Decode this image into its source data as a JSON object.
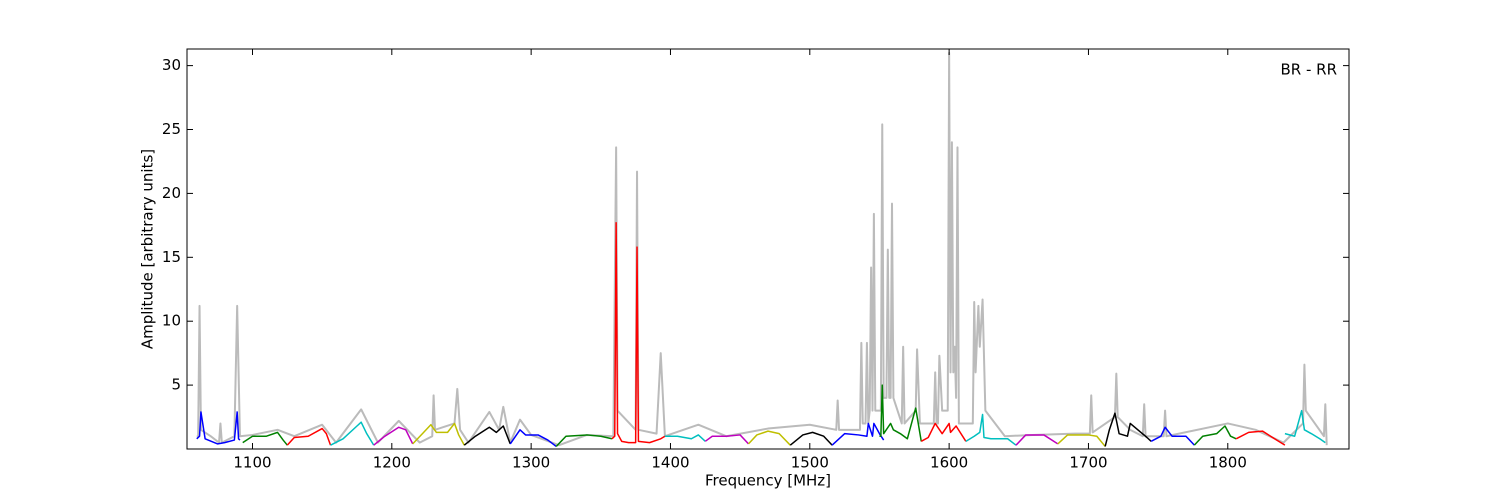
{
  "chart_data": {
    "type": "line",
    "xlabel": "Frequency [MHz]",
    "ylabel": "Amplitude [arbitrary units]",
    "annotation": "BR - RR",
    "xlim": [
      1053,
      1887
    ],
    "ylim": [
      0,
      31.3
    ],
    "xticks": [
      1100,
      1200,
      1300,
      1400,
      1500,
      1600,
      1700,
      1800
    ],
    "yticks": [
      5,
      10,
      15,
      20,
      25,
      30
    ],
    "series": [
      {
        "color": "#bbbbbb",
        "x": [
          1060,
          1061,
          1062,
          1063,
          1070,
          1076,
          1077,
          1078,
          1087,
          1089,
          1091,
          1100,
          1118,
          1130,
          1150,
          1160,
          1178,
          1190,
          1205,
          1220,
          1229,
          1230,
          1231,
          1245,
          1247,
          1249,
          1255,
          1270,
          1277,
          1280,
          1285,
          1292,
          1300,
          1320,
          1340,
          1359,
          1361,
          1362,
          1375,
          1376,
          1377,
          1390,
          1393,
          1396,
          1420,
          1440,
          1470,
          1500,
          1519,
          1520,
          1521,
          1536,
          1537,
          1538,
          1540,
          1541,
          1542,
          1543,
          1544,
          1545,
          1546,
          1547,
          1551,
          1552,
          1553,
          1555,
          1556,
          1557,
          1558,
          1559,
          1560,
          1566,
          1567,
          1568,
          1576,
          1577,
          1579,
          1589,
          1590,
          1591,
          1592,
          1593,
          1595,
          1599,
          1600,
          1601,
          1602,
          1603,
          1604,
          1605,
          1606,
          1607,
          1617,
          1618,
          1619,
          1621,
          1622,
          1624,
          1626,
          1640,
          1660,
          1690,
          1701,
          1702,
          1703,
          1719,
          1720,
          1721,
          1730,
          1739,
          1740,
          1741,
          1754,
          1755,
          1756,
          1800,
          1820,
          1840,
          1854,
          1855,
          1856,
          1869,
          1870,
          1871
        ],
        "values": [
          1,
          1,
          11.2,
          1.5,
          1,
          0.5,
          2,
          0.5,
          1,
          11.2,
          1,
          1.1,
          1.5,
          1,
          1.9,
          0.5,
          3.1,
          0.5,
          2.2,
          0.5,
          1,
          4.2,
          1.5,
          2,
          4.7,
          1.5,
          0.5,
          2.9,
          1.5,
          3.3,
          0.5,
          2.3,
          1.1,
          0.3,
          1.1,
          1,
          23.6,
          3,
          1.5,
          21.7,
          1.5,
          1.2,
          7.5,
          1,
          1.9,
          1,
          1.6,
          1.9,
          1.5,
          3.8,
          1.5,
          1.5,
          8.3,
          2,
          2,
          8.3,
          2,
          3,
          14.2,
          3,
          18.4,
          3,
          3,
          25.4,
          4,
          4,
          15.6,
          4,
          4,
          19.2,
          4,
          2,
          8,
          2,
          3,
          7.8,
          2,
          2,
          6,
          2,
          2,
          7.3,
          3,
          3,
          31,
          6,
          24,
          6,
          8,
          4,
          23.6,
          2,
          2,
          11.5,
          6,
          11.2,
          8,
          11.7,
          3,
          1,
          1.1,
          1.2,
          1.2,
          4.2,
          1.3,
          2.5,
          5.9,
          2.5,
          1.5,
          1,
          3.5,
          1,
          1,
          3,
          1,
          2,
          1.5,
          0.5,
          2,
          6.6,
          3,
          1,
          3.5,
          0.3
        ]
      },
      {
        "color": "#0000ff",
        "x": [
          1060,
          1062,
          1063,
          1066,
          1075,
          1080,
          1087,
          1089,
          1090,
          1091
        ],
        "values": [
          0.8,
          1,
          2.9,
          0.8,
          0.4,
          0.5,
          0.7,
          2.9,
          0.8,
          0.7
        ]
      },
      {
        "color": "#008000",
        "x": [
          1093,
          1100,
          1110,
          1118,
          1122,
          1125
        ],
        "values": [
          0.5,
          1,
          1,
          1.3,
          0.7,
          0.3
        ]
      },
      {
        "color": "#ff0000",
        "x": [
          1125,
          1130,
          1140,
          1150,
          1153,
          1156
        ],
        "values": [
          0.3,
          0.9,
          1,
          1.6,
          1.2,
          0.3
        ]
      },
      {
        "color": "#00bfbf",
        "x": [
          1156,
          1165,
          1175,
          1178,
          1182,
          1187
        ],
        "values": [
          0.3,
          0.8,
          1.8,
          2.1,
          1.2,
          0.3
        ]
      },
      {
        "color": "#bf00bf",
        "x": [
          1187,
          1195,
          1205,
          1210,
          1215
        ],
        "values": [
          0.3,
          1,
          1.7,
          1.5,
          0.4
        ]
      },
      {
        "color": "#bfbf00",
        "x": [
          1215,
          1222,
          1228,
          1232,
          1240,
          1245,
          1248,
          1252
        ],
        "values": [
          0.4,
          1.2,
          1.9,
          1.3,
          1.3,
          2,
          1.1,
          0.3
        ]
      },
      {
        "color": "#000000",
        "x": [
          1252,
          1260,
          1270,
          1275,
          1280,
          1285
        ],
        "values": [
          0.3,
          1,
          1.7,
          1.3,
          1.8,
          0.4
        ]
      },
      {
        "color": "#0000ff",
        "x": [
          1285,
          1292,
          1296,
          1305,
          1312,
          1318
        ],
        "values": [
          0.4,
          1.5,
          1.1,
          1.1,
          0.7,
          0.2
        ]
      },
      {
        "color": "#008000",
        "x": [
          1318,
          1325,
          1340,
          1350,
          1358
        ],
        "values": [
          0.2,
          1,
          1.1,
          1,
          0.8
        ]
      },
      {
        "color": "#ff0000",
        "x": [
          1358,
          1360,
          1361,
          1362,
          1365,
          1370,
          1375,
          1376,
          1377,
          1385,
          1393,
          1396
        ],
        "values": [
          0.8,
          1,
          17.7,
          1.2,
          0.6,
          0.5,
          0.5,
          15.8,
          0.6,
          0.5,
          0.8,
          1
        ]
      },
      {
        "color": "#00bfbf",
        "x": [
          1396,
          1405,
          1415,
          1420,
          1425
        ],
        "values": [
          1,
          1,
          0.8,
          1.1,
          0.6
        ]
      },
      {
        "color": "#bf00bf",
        "x": [
          1425,
          1430,
          1440,
          1450,
          1456
        ],
        "values": [
          0.6,
          1,
          1,
          1.1,
          0.4
        ]
      },
      {
        "color": "#bfbf00",
        "x": [
          1456,
          1462,
          1470,
          1478,
          1486
        ],
        "values": [
          0.4,
          1.1,
          1.4,
          1.2,
          0.3
        ]
      },
      {
        "color": "#000000",
        "x": [
          1486,
          1495,
          1502,
          1510,
          1516
        ],
        "values": [
          0.3,
          1.1,
          1.3,
          1,
          0.3
        ]
      },
      {
        "color": "#0000ff",
        "x": [
          1516,
          1525,
          1535,
          1541,
          1542,
          1545,
          1546,
          1550,
          1553
        ],
        "values": [
          0.3,
          1.2,
          1.1,
          1,
          2,
          1,
          2,
          1.2,
          0.7
        ]
      },
      {
        "color": "#008000",
        "x": [
          1550,
          1551,
          1552,
          1553,
          1558,
          1560,
          1565,
          1570,
          1576,
          1580
        ],
        "values": [
          1,
          1,
          5,
          1.2,
          2,
          1.5,
          1.2,
          0.8,
          3.2,
          0.6
        ]
      },
      {
        "color": "#ff0000",
        "x": [
          1580,
          1585,
          1590,
          1595,
          1600,
          1601,
          1605,
          1612
        ],
        "values": [
          0.6,
          0.9,
          2,
          1.2,
          2,
          1.3,
          1.8,
          0.6
        ]
      },
      {
        "color": "#00bfbf",
        "x": [
          1612,
          1618,
          1622,
          1624,
          1625,
          1630,
          1642,
          1648
        ],
        "values": [
          0.6,
          1,
          1.3,
          2.7,
          0.9,
          0.8,
          0.8,
          0.3
        ]
      },
      {
        "color": "#bf00bf",
        "x": [
          1648,
          1655,
          1668,
          1678
        ],
        "values": [
          0.3,
          1.1,
          1.1,
          0.4
        ]
      },
      {
        "color": "#bfbf00",
        "x": [
          1678,
          1685,
          1700,
          1706,
          1712
        ],
        "values": [
          0.4,
          1.1,
          1.1,
          1,
          0.2
        ]
      },
      {
        "color": "#000000",
        "x": [
          1712,
          1715,
          1719,
          1722,
          1728,
          1730,
          1742,
          1745
        ],
        "values": [
          0.2,
          1.5,
          2.8,
          1.2,
          1,
          2,
          0.9,
          0.6
        ]
      },
      {
        "color": "#0000ff",
        "x": [
          1745,
          1752,
          1755,
          1760,
          1770,
          1776
        ],
        "values": [
          0.6,
          1,
          1.7,
          1,
          1,
          0.3
        ]
      },
      {
        "color": "#008000",
        "x": [
          1776,
          1782,
          1792,
          1798,
          1802,
          1806
        ],
        "values": [
          0.3,
          1,
          1.2,
          1.8,
          1,
          0.8
        ]
      },
      {
        "color": "#ff0000",
        "x": [
          1806,
          1815,
          1825,
          1835,
          1841
        ],
        "values": [
          0.8,
          1.3,
          1.4,
          0.7,
          0.3
        ]
      },
      {
        "color": "#00bfbf",
        "x": [
          1841,
          1848,
          1853,
          1855,
          1860,
          1866,
          1870
        ],
        "values": [
          1.2,
          1,
          3,
          1.5,
          1.2,
          0.8,
          0.5
        ]
      }
    ]
  }
}
